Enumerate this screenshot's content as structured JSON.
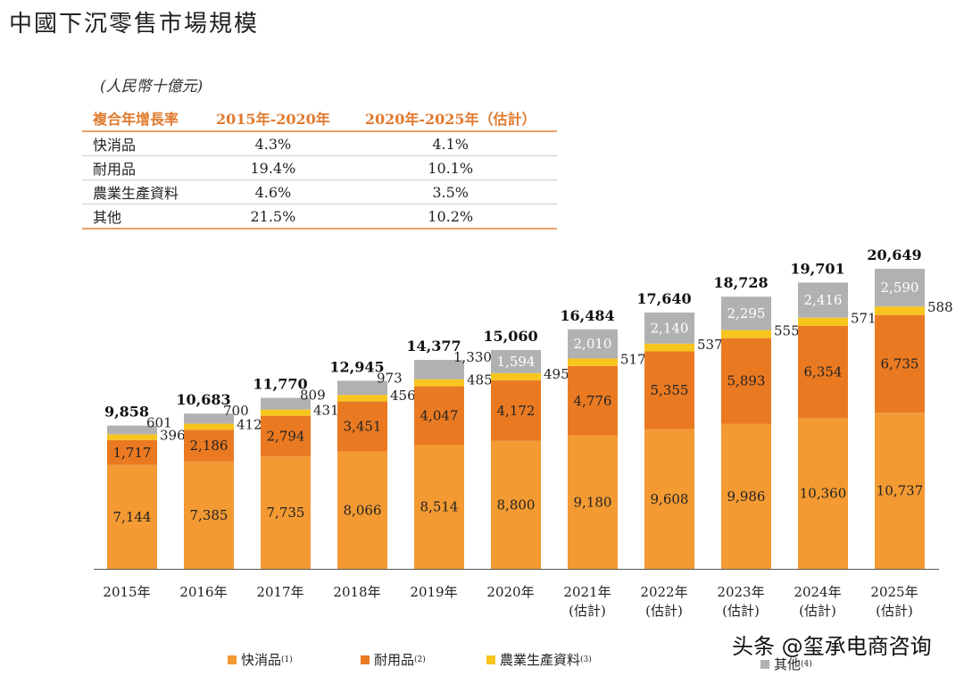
{
  "title": "中國下沉零售市場規模",
  "unit": "(人民幣十億元)",
  "cagr_table": {
    "headers": [
      "複合年增長率",
      "2015年-2020年",
      "2020年-2025年（估計）"
    ],
    "rows": [
      [
        "快消品",
        "4.3%",
        "4.1%"
      ],
      [
        "耐用品",
        "19.4%",
        "10.1%"
      ],
      [
        "農業生產資料",
        "4.6%",
        "3.5%"
      ],
      [
        "其他",
        "21.5%",
        "10.2%"
      ]
    ]
  },
  "chart_data": {
    "type": "bar",
    "stacked": true,
    "categories": [
      "2015年",
      "2016年",
      "2017年",
      "2018年",
      "2019年",
      "2020年",
      "2021年\n(估計)",
      "2022年\n(估計)",
      "2023年\n(估計)",
      "2024年\n(估計)",
      "2025年\n(估計)"
    ],
    "series": [
      {
        "name": "快消品",
        "note": "(1)",
        "color": "#f39a33",
        "values": [
          7144,
          7385,
          7735,
          8066,
          8514,
          8800,
          9180,
          9608,
          9986,
          10360,
          10737
        ]
      },
      {
        "name": "耐用品",
        "note": "(2)",
        "color": "#ea7a22",
        "values": [
          1717,
          2186,
          2794,
          3451,
          4047,
          4172,
          4776,
          5355,
          5893,
          6354,
          6735
        ]
      },
      {
        "name": "農業生產資料",
        "note": "(3)",
        "color": "#f7c51e",
        "values": [
          396,
          412,
          431,
          456,
          485,
          495,
          517,
          537,
          555,
          571,
          588
        ]
      },
      {
        "name": "其他",
        "note": "(4)",
        "color": "#b1b1b1",
        "values": [
          601,
          700,
          809,
          973,
          1330,
          1594,
          2010,
          2140,
          2295,
          2416,
          2590
        ]
      }
    ],
    "totals": [
      9858,
      10683,
      11770,
      12945,
      14377,
      15060,
      16484,
      17640,
      18728,
      19701,
      20649
    ],
    "ylim": [
      0,
      21000
    ],
    "grid": false,
    "legend": "bottom"
  },
  "watermark": "头条 @玺承电商咨询"
}
